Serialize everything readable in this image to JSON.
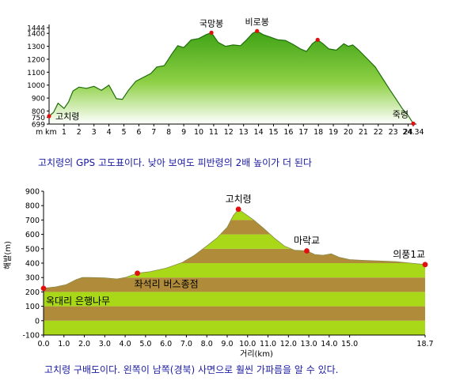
{
  "chart_data": [
    {
      "type": "area",
      "title": "",
      "xlabel": "km",
      "ylabel": "m",
      "xlim": [
        0,
        24.34
      ],
      "ylim": [
        699,
        1444
      ],
      "x_ticks": [
        "1",
        "2",
        "3",
        "4",
        "5",
        "6",
        "7",
        "8",
        "9",
        "10",
        "11",
        "12",
        "13",
        "14",
        "15",
        "16",
        "17",
        "18",
        "19",
        "20",
        "21",
        "22",
        "23",
        "24",
        "24.34"
      ],
      "y_ticks": [
        "1444",
        "1400",
        "1300",
        "1200",
        "1100",
        "1000",
        "900",
        "800",
        "750",
        "699"
      ],
      "colors": {
        "fill_top": "#52b31e",
        "fill_bottom": "#ffffff",
        "line": "#1e6e0a",
        "marker": "#e01010"
      },
      "points": [
        [
          0,
          760
        ],
        [
          0.3,
          790
        ],
        [
          0.6,
          860
        ],
        [
          1.0,
          820
        ],
        [
          1.3,
          870
        ],
        [
          1.6,
          955
        ],
        [
          2.0,
          985
        ],
        [
          2.5,
          975
        ],
        [
          3.0,
          990
        ],
        [
          3.5,
          960
        ],
        [
          4.0,
          1000
        ],
        [
          4.5,
          895
        ],
        [
          4.9,
          890
        ],
        [
          5.3,
          960
        ],
        [
          5.8,
          1030
        ],
        [
          6.3,
          1060
        ],
        [
          6.8,
          1090
        ],
        [
          7.2,
          1140
        ],
        [
          7.7,
          1150
        ],
        [
          8.2,
          1240
        ],
        [
          8.6,
          1305
        ],
        [
          9.0,
          1290
        ],
        [
          9.5,
          1350
        ],
        [
          10.0,
          1360
        ],
        [
          10.5,
          1390
        ],
        [
          10.85,
          1405
        ],
        [
          11.3,
          1330
        ],
        [
          11.8,
          1300
        ],
        [
          12.3,
          1310
        ],
        [
          12.8,
          1305
        ],
        [
          13.2,
          1350
        ],
        [
          13.6,
          1400
        ],
        [
          13.9,
          1418
        ],
        [
          14.3,
          1390
        ],
        [
          14.8,
          1370
        ],
        [
          15.3,
          1350
        ],
        [
          15.8,
          1345
        ],
        [
          16.3,
          1315
        ],
        [
          16.8,
          1280
        ],
        [
          17.2,
          1260
        ],
        [
          17.6,
          1320
        ],
        [
          17.95,
          1350
        ],
        [
          18.3,
          1320
        ],
        [
          18.7,
          1280
        ],
        [
          19.2,
          1270
        ],
        [
          19.7,
          1320
        ],
        [
          20.0,
          1300
        ],
        [
          20.3,
          1310
        ],
        [
          20.7,
          1270
        ],
        [
          21.3,
          1200
        ],
        [
          21.8,
          1140
        ],
        [
          22.3,
          1050
        ],
        [
          22.8,
          960
        ],
        [
          23.2,
          890
        ],
        [
          23.6,
          820
        ],
        [
          24.0,
          765
        ],
        [
          24.34,
          703
        ]
      ],
      "annotations": [
        {
          "label": "고치령",
          "x": 0,
          "y": 760
        },
        {
          "label": "국망봉",
          "x": 10.85,
          "y": 1405
        },
        {
          "label": "비로봉",
          "x": 13.9,
          "y": 1418
        },
        {
          "label": "",
          "x": 17.95,
          "y": 1350
        },
        {
          "label": "죽령",
          "x": 24.34,
          "y": 703
        }
      ]
    },
    {
      "type": "area",
      "title": "",
      "xlabel": "거리(km)",
      "ylabel": "해발(m)",
      "xlim": [
        0.0,
        18.7
      ],
      "ylim": [
        -100,
        900
      ],
      "x_ticks": [
        "0.0",
        "1.0",
        "2.0",
        "3.0",
        "4.0",
        "5.0",
        "6.0",
        "7.0",
        "8.0",
        "9.0",
        "10.0",
        "11.0",
        "12.0",
        "13.0",
        "14.0",
        "15.0",
        "18.7"
      ],
      "y_ticks": [
        "900",
        "800",
        "700",
        "600",
        "500",
        "400",
        "300",
        "200",
        "100",
        "0",
        "-100"
      ],
      "colors": {
        "band_green": "#a8d818",
        "band_brown": "#b08c3a",
        "line": "#5a5a5a",
        "marker": "#e01010"
      },
      "points": [
        [
          0.0,
          225
        ],
        [
          0.6,
          235
        ],
        [
          1.1,
          250
        ],
        [
          1.6,
          285
        ],
        [
          1.9,
          300
        ],
        [
          2.3,
          300
        ],
        [
          3.0,
          298
        ],
        [
          3.6,
          290
        ],
        [
          4.0,
          300
        ],
        [
          4.6,
          330
        ],
        [
          5.2,
          340
        ],
        [
          6.0,
          365
        ],
        [
          6.8,
          405
        ],
        [
          7.4,
          455
        ],
        [
          8.0,
          520
        ],
        [
          8.5,
          575
        ],
        [
          9.0,
          650
        ],
        [
          9.3,
          730
        ],
        [
          9.55,
          775
        ],
        [
          9.9,
          740
        ],
        [
          10.3,
          700
        ],
        [
          10.8,
          640
        ],
        [
          11.3,
          575
        ],
        [
          11.8,
          520
        ],
        [
          12.3,
          490
        ],
        [
          12.9,
          485
        ],
        [
          13.3,
          460
        ],
        [
          13.7,
          455
        ],
        [
          14.1,
          465
        ],
        [
          14.5,
          440
        ],
        [
          15.0,
          425
        ],
        [
          15.6,
          420
        ],
        [
          16.5,
          415
        ],
        [
          17.3,
          410
        ],
        [
          18.0,
          400
        ],
        [
          18.7,
          390
        ]
      ],
      "annotations": [
        {
          "label": "옥대리 은행나무",
          "x": 0.0,
          "y": 225
        },
        {
          "label": "좌석리 버스종점",
          "x": 4.6,
          "y": 330
        },
        {
          "label": "고치령",
          "x": 9.55,
          "y": 775
        },
        {
          "label": "마락교",
          "x": 12.9,
          "y": 485
        },
        {
          "label": "의풍1교",
          "x": 18.7,
          "y": 390
        }
      ]
    }
  ],
  "captions": {
    "top": "고치령의 GPS 고도표이다. 낮아 보여도 피반령의 2배 높이가 더 된다",
    "bottom": "고치령 구배도이다. 왼쪽이 남쪽(경북) 사면으로 훨씬 가파름을 알 수 있다."
  }
}
